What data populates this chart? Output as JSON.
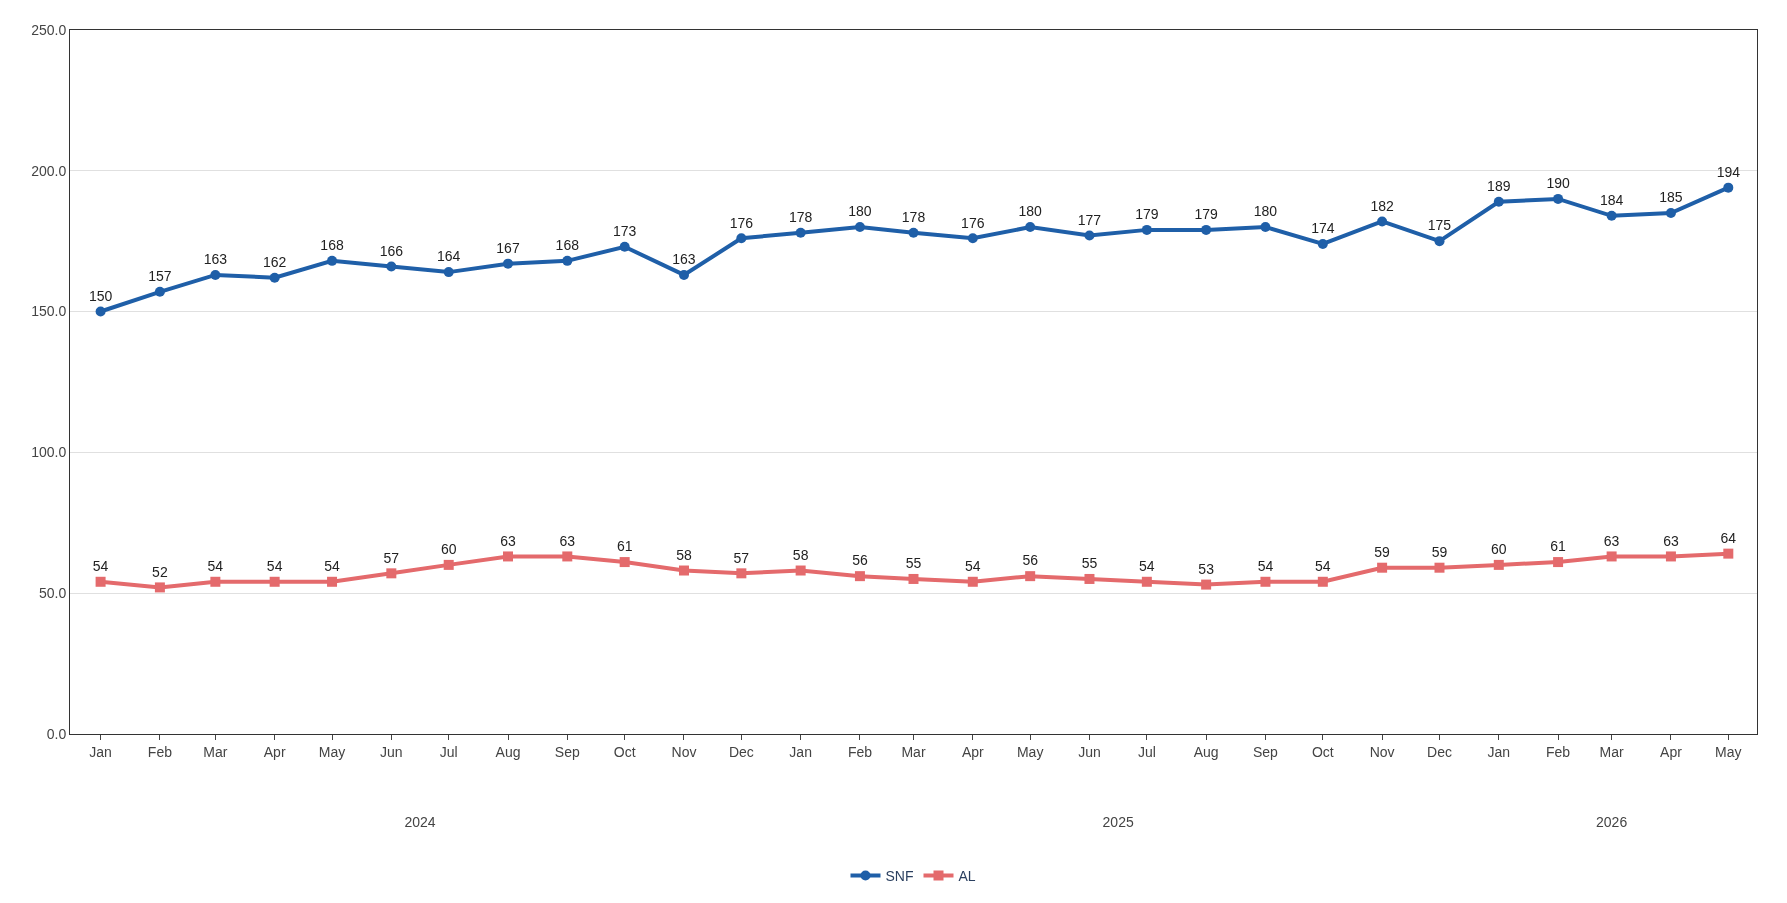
{
  "chart_data": {
    "type": "line",
    "x": [
      "2024-01",
      "2024-02",
      "2024-03",
      "2024-04",
      "2024-05",
      "2024-06",
      "2024-07",
      "2024-08",
      "2024-09",
      "2024-10",
      "2024-11",
      "2024-12",
      "2025-01",
      "2025-02",
      "2025-03",
      "2025-04",
      "2025-05",
      "2025-06",
      "2025-07",
      "2025-08",
      "2025-09",
      "2025-10",
      "2025-11",
      "2025-12",
      "2026-01",
      "2026-02",
      "2026-03",
      "2026-04",
      "2026-05"
    ],
    "xlim": [
      "2023-12-16",
      "2026-05-16"
    ],
    "xticks": [
      {
        "value": "2024-01",
        "label": "Jan"
      },
      {
        "value": "2024-02",
        "label": "Feb"
      },
      {
        "value": "2024-03",
        "label": "Mar"
      },
      {
        "value": "2024-04",
        "label": "Apr"
      },
      {
        "value": "2024-05",
        "label": "May"
      },
      {
        "value": "2024-06",
        "label": "Jun"
      },
      {
        "value": "2024-07",
        "label": "Jul"
      },
      {
        "value": "2024-08",
        "label": "Aug"
      },
      {
        "value": "2024-09",
        "label": "Sep"
      },
      {
        "value": "2024-10",
        "label": "Oct"
      },
      {
        "value": "2024-11",
        "label": "Nov"
      },
      {
        "value": "2024-12",
        "label": "Dec"
      },
      {
        "value": "2025-01",
        "label": "Jan"
      },
      {
        "value": "2025-02",
        "label": "Feb"
      },
      {
        "value": "2025-03",
        "label": "Mar"
      },
      {
        "value": "2025-04",
        "label": "Apr"
      },
      {
        "value": "2025-05",
        "label": "May"
      },
      {
        "value": "2025-06",
        "label": "Jun"
      },
      {
        "value": "2025-07",
        "label": "Jul"
      },
      {
        "value": "2025-08",
        "label": "Aug"
      },
      {
        "value": "2025-09",
        "label": "Sep"
      },
      {
        "value": "2025-10",
        "label": "Oct"
      },
      {
        "value": "2025-11",
        "label": "Nov"
      },
      {
        "value": "2025-12",
        "label": "Dec"
      },
      {
        "value": "2026-01",
        "label": "Jan"
      },
      {
        "value": "2026-02",
        "label": "Feb"
      },
      {
        "value": "2026-03",
        "label": "Mar"
      },
      {
        "value": "2026-04",
        "label": "Apr"
      },
      {
        "value": "2026-05",
        "label": "May"
      }
    ],
    "x2lim": [
      "2023-12-16",
      "2026-05-16"
    ],
    "x2ticks": [
      {
        "value": "2024-06-16",
        "label": "2024"
      },
      {
        "value": "2025-06-16",
        "label": "2025"
      },
      {
        "value": "2026-03-01",
        "label": "2026"
      }
    ],
    "series": [
      {
        "name": "SNF",
        "color": "#1f5fa8",
        "marker": "circle",
        "values": [
          150,
          157,
          163,
          162,
          168,
          166,
          164,
          167,
          168,
          173,
          163,
          176,
          178,
          180,
          178,
          176,
          180,
          177,
          179,
          179,
          180,
          174,
          182,
          175,
          189,
          190,
          184,
          185,
          194
        ]
      },
      {
        "name": "AL",
        "color": "#e46a6c",
        "marker": "square",
        "values": [
          54,
          52,
          54,
          54,
          54,
          57,
          60,
          63,
          63,
          61,
          58,
          57,
          58,
          56,
          55,
          54,
          56,
          55,
          54,
          53,
          54,
          54,
          59,
          59,
          60,
          61,
          63,
          63,
          64
        ]
      }
    ],
    "ylim": [
      0,
      250
    ],
    "yticks": [
      {
        "value": 0,
        "label": "0.0"
      },
      {
        "value": 50,
        "label": "50.0"
      },
      {
        "value": 100,
        "label": "100.0"
      },
      {
        "value": 150,
        "label": "150.0"
      },
      {
        "value": 200,
        "label": "200.0"
      },
      {
        "value": 250,
        "label": "250.0"
      }
    ],
    "grid": "y",
    "legend": "bottom",
    "data_labels": true,
    "line_style": "solid"
  }
}
